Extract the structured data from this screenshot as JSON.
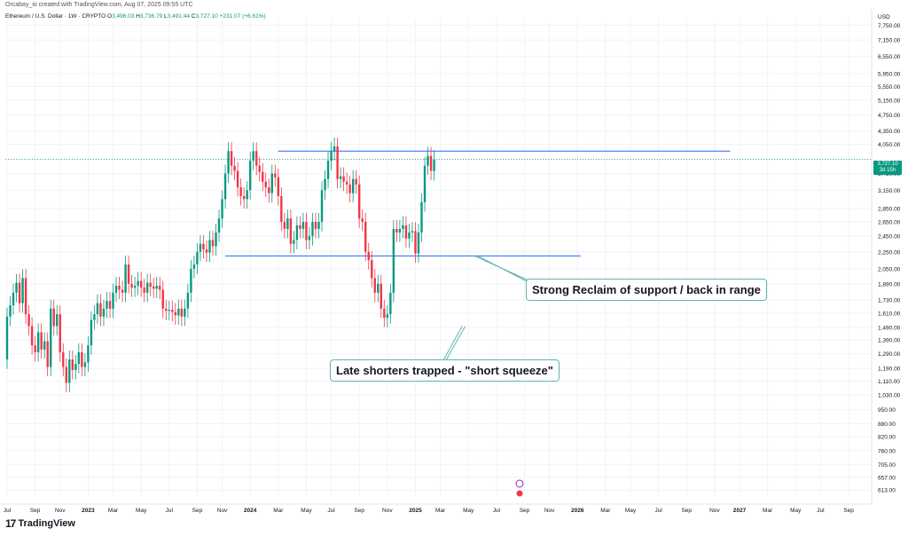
{
  "header": {
    "credit": "Orcabay_io created with TradingView.com, Aug 07, 2025 09:55 UTC",
    "symbol": "Ethereum / U.S. Dollar · 1W · CRYPTO",
    "open_label": "O",
    "open": "3,496.03",
    "high_label": "H",
    "high": "3,736.79",
    "low_label": "L",
    "low": "3,491.44",
    "close_label": "C",
    "close": "3,727.10",
    "change": "+231.07 (+6.61%)"
  },
  "currency": "USD",
  "price_tag": {
    "price": "3,727.10",
    "countdown": "3d 15h"
  },
  "brand": {
    "logo": "17",
    "name": "TradingView"
  },
  "annotations": {
    "reclaim": "Strong Reclaim of support / back in range",
    "squeeze": "Late shorters trapped - \"short squeeze\""
  },
  "colors": {
    "up": "#089981",
    "down": "#f23645",
    "line": "#2962ff",
    "callout_border": "#5fb4b0"
  },
  "chart_data": {
    "type": "candlestick",
    "title": "Ethereum / U.S. Dollar · 1W · CRYPTO",
    "y_scale": "log",
    "ylim": [
      590,
      8000
    ],
    "y_ticks": [
      7750,
      7150,
      6550,
      5950,
      5550,
      5150,
      4750,
      4350,
      4050,
      3727.1,
      3450,
      3150,
      2850,
      2650,
      2450,
      2250,
      2050,
      1890,
      1730,
      1610,
      1490,
      1390,
      1290,
      1190,
      1110,
      1030,
      950,
      880,
      820,
      760,
      705,
      657,
      613
    ],
    "y_tick_labels": [
      "7,750.00",
      "7,150.00",
      "6,550.00",
      "5,950.00",
      "5,550.00",
      "5,150.00",
      "4,750.00",
      "4,350.00",
      "4,050.00",
      "",
      "3,450.00",
      "3,150.00",
      "2,850.00",
      "2,650.00",
      "2,450.00",
      "2,250.00",
      "2,050.00",
      "1,890.00",
      "1,730.00",
      "1,610.00",
      "1,490.00",
      "1,390.00",
      "1,290.00",
      "1,190.00",
      "1,110.00",
      "1,030.00",
      "950.00",
      "880.00",
      "820.00",
      "760.00",
      "705.00",
      "657.00",
      "613.00"
    ],
    "x_tick_labels": [
      "Jul",
      "Sep",
      "Nov",
      "2023",
      "Mar",
      "May",
      "Jul",
      "Sep",
      "Nov",
      "2024",
      "Mar",
      "May",
      "Jul",
      "Sep",
      "Nov",
      "2025",
      "Mar",
      "May",
      "Jul",
      "Sep",
      "Nov",
      "2026",
      "Mar",
      "May",
      "Jul",
      "Sep",
      "Nov",
      "2027",
      "Mar",
      "May",
      "Jul",
      "Sep"
    ],
    "x_tick_weeks": [
      0,
      9,
      17,
      26,
      34,
      43,
      52,
      61,
      69,
      78,
      87,
      96,
      104,
      113,
      122,
      131,
      139,
      148,
      157,
      166,
      174,
      183,
      192,
      200,
      209,
      218,
      227,
      235,
      244,
      253,
      261,
      270
    ],
    "x_tick_bold": [
      "2023",
      "2024",
      "2025",
      "2026",
      "2027"
    ],
    "candles": [
      [
        1250,
        1580
      ],
      [
        1580,
        1680
      ],
      [
        1680,
        1800
      ],
      [
        1800,
        1900
      ],
      [
        1900,
        1700
      ],
      [
        1700,
        1950
      ],
      [
        1950,
        1600
      ],
      [
        1600,
        1500
      ],
      [
        1500,
        1350
      ],
      [
        1350,
        1300
      ],
      [
        1300,
        1450
      ],
      [
        1450,
        1320
      ],
      [
        1320,
        1380
      ],
      [
        1380,
        1200
      ],
      [
        1200,
        1650
      ],
      [
        1650,
        1500
      ],
      [
        1500,
        1600
      ],
      [
        1600,
        1300
      ],
      [
        1300,
        1200
      ],
      [
        1200,
        1100
      ],
      [
        1100,
        1250
      ],
      [
        1250,
        1180
      ],
      [
        1180,
        1220
      ],
      [
        1220,
        1300
      ],
      [
        1300,
        1200
      ],
      [
        1200,
        1230
      ],
      [
        1230,
        1350
      ],
      [
        1350,
        1550
      ],
      [
        1550,
        1600
      ],
      [
        1600,
        1700
      ],
      [
        1700,
        1580
      ],
      [
        1580,
        1650
      ],
      [
        1650,
        1720
      ],
      [
        1720,
        1650
      ],
      [
        1650,
        1800
      ],
      [
        1800,
        1870
      ],
      [
        1870,
        1830
      ],
      [
        1830,
        1800
      ],
      [
        1800,
        2100
      ],
      [
        2100,
        1890
      ],
      [
        1890,
        1850
      ],
      [
        1850,
        1870
      ],
      [
        1870,
        1920
      ],
      [
        1920,
        1850
      ],
      [
        1850,
        1800
      ],
      [
        1800,
        1900
      ],
      [
        1900,
        1860
      ],
      [
        1860,
        1840
      ],
      [
        1840,
        1870
      ],
      [
        1870,
        1830
      ],
      [
        1830,
        1650
      ],
      [
        1650,
        1630
      ],
      [
        1630,
        1640
      ],
      [
        1640,
        1620
      ],
      [
        1620,
        1590
      ],
      [
        1590,
        1650
      ],
      [
        1650,
        1580
      ],
      [
        1580,
        1650
      ],
      [
        1650,
        1800
      ],
      [
        1800,
        2050
      ],
      [
        2050,
        2100
      ],
      [
        2100,
        2250
      ],
      [
        2250,
        2350
      ],
      [
        2350,
        2280
      ],
      [
        2280,
        2240
      ],
      [
        2240,
        2400
      ],
      [
        2400,
        2320
      ],
      [
        2320,
        2500
      ],
      [
        2500,
        2700
      ],
      [
        2700,
        3000
      ],
      [
        3000,
        3450
      ],
      [
        3450,
        3900
      ],
      [
        3900,
        3600
      ],
      [
        3600,
        3500
      ],
      [
        3500,
        3200
      ],
      [
        3200,
        3050
      ],
      [
        3050,
        3000
      ],
      [
        3000,
        3150
      ],
      [
        3150,
        3700
      ],
      [
        3700,
        3900
      ],
      [
        3900,
        3600
      ],
      [
        3600,
        3480
      ],
      [
        3480,
        3300
      ],
      [
        3300,
        3200
      ],
      [
        3200,
        3100
      ],
      [
        3100,
        3450
      ],
      [
        3450,
        3380
      ],
      [
        3380,
        3050
      ],
      [
        3050,
        2650
      ],
      [
        2650,
        2550
      ],
      [
        2550,
        2700
      ],
      [
        2700,
        2350
      ],
      [
        2350,
        2400
      ],
      [
        2400,
        2600
      ],
      [
        2600,
        2550
      ],
      [
        2550,
        2650
      ],
      [
        2650,
        2400
      ],
      [
        2400,
        2450
      ],
      [
        2450,
        2650
      ],
      [
        2650,
        2550
      ],
      [
        2550,
        2650
      ],
      [
        2650,
        3150
      ],
      [
        3150,
        3350
      ],
      [
        3350,
        3700
      ],
      [
        3700,
        3900
      ],
      [
        3900,
        4000
      ],
      [
        4000,
        3350
      ],
      [
        3350,
        3400
      ],
      [
        3400,
        3300
      ],
      [
        3300,
        3250
      ],
      [
        3250,
        3100
      ],
      [
        3100,
        3350
      ],
      [
        3350,
        3250
      ],
      [
        3250,
        2700
      ],
      [
        2700,
        2650
      ],
      [
        2650,
        2250
      ],
      [
        2250,
        2150
      ],
      [
        2150,
        1950
      ],
      [
        1950,
        1800
      ],
      [
        1800,
        1890
      ],
      [
        1890,
        1650
      ],
      [
        1650,
        1570
      ],
      [
        1570,
        1600
      ],
      [
        1600,
        1800
      ],
      [
        1800,
        2550
      ],
      [
        2550,
        2500
      ],
      [
        2500,
        2550
      ],
      [
        2550,
        2600
      ],
      [
        2600,
        2420
      ],
      [
        2420,
        2500
      ],
      [
        2500,
        2520
      ],
      [
        2520,
        2230
      ],
      [
        2230,
        2500
      ],
      [
        2500,
        2950
      ],
      [
        2950,
        3600
      ],
      [
        3600,
        3800
      ],
      [
        3800,
        3500
      ],
      [
        3496.03,
        3727.1
      ]
    ],
    "horizontal_levels": [
      {
        "price": 3900,
        "from_week": 87,
        "to_week": 232
      },
      {
        "price": 2200,
        "from_week": 70,
        "to_week": 184
      }
    ],
    "current_price": 3727.1
  }
}
